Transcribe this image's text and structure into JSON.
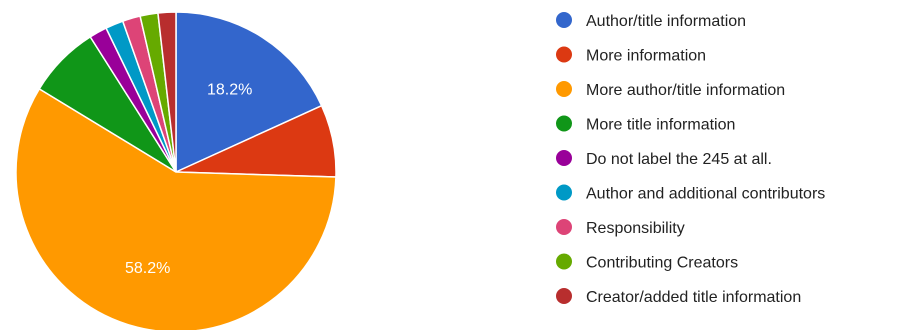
{
  "chart_data": {
    "type": "pie",
    "title": "",
    "start_angle_deg": 90,
    "direction": "clockwise",
    "legend_position": "right",
    "slices": [
      {
        "label": "Author/title information",
        "value": 18.2,
        "color": "#3366cc",
        "data_label": "18.2%"
      },
      {
        "label": "More information",
        "value": 7.3,
        "color": "#dc3912",
        "data_label": ""
      },
      {
        "label": "More author/title information",
        "value": 58.2,
        "color": "#ff9900",
        "data_label": "58.2%"
      },
      {
        "label": "More title information",
        "value": 7.3,
        "color": "#109618",
        "data_label": ""
      },
      {
        "label": "Do not label the 245 at all.",
        "value": 1.8,
        "color": "#990099",
        "data_label": ""
      },
      {
        "label": "Author and additional contributors",
        "value": 1.8,
        "color": "#0099c6",
        "data_label": ""
      },
      {
        "label": "Responsibility",
        "value": 1.8,
        "color": "#dd4477",
        "data_label": ""
      },
      {
        "label": "Contributing Creators",
        "value": 1.8,
        "color": "#66aa00",
        "data_label": ""
      },
      {
        "label": "Creator/added title information",
        "value": 1.8,
        "color": "#b82e2e",
        "data_label": ""
      }
    ]
  }
}
